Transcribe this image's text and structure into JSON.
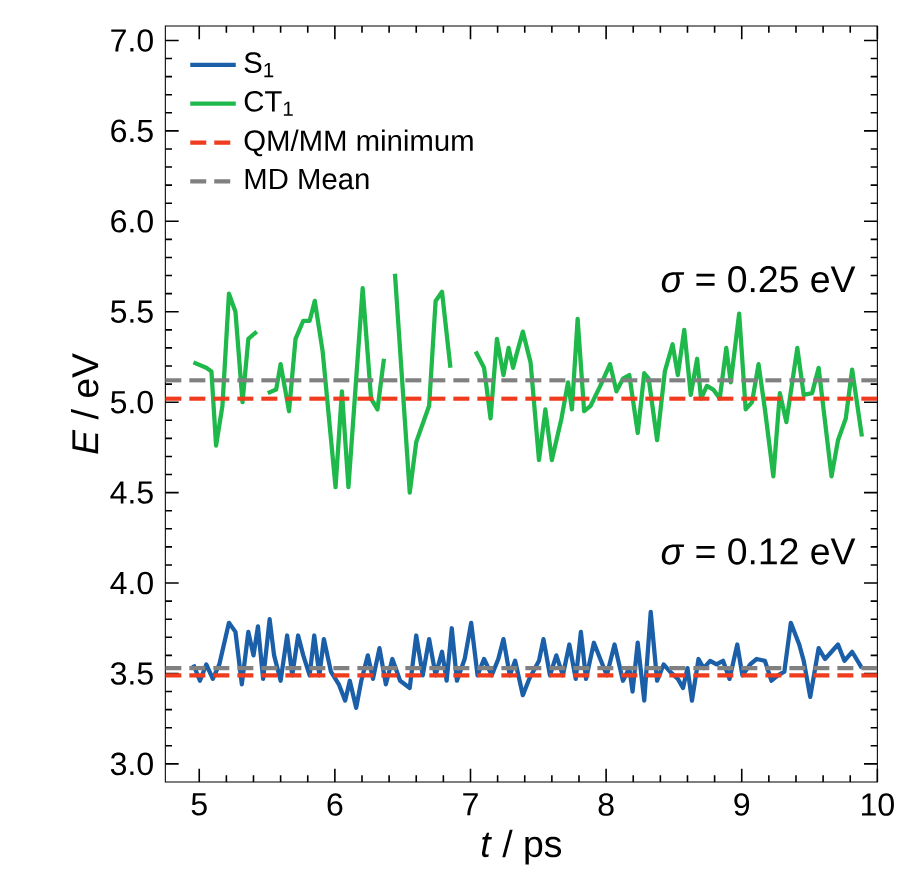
{
  "chart_data": {
    "type": "line",
    "xlabel": "*t* / ps",
    "ylabel": "*E* / eV",
    "xlim": [
      4.75,
      10
    ],
    "ylim": [
      2.9,
      7.08
    ],
    "xticks": [
      5,
      6,
      7,
      8,
      9,
      10
    ],
    "yticks": [
      {
        "value": 3,
        "label": "3.0"
      },
      {
        "value": 3.5,
        "label": "3.5"
      },
      {
        "value": 4,
        "label": "4.0"
      },
      {
        "value": 4.5,
        "label": "4.5"
      },
      {
        "value": 5,
        "label": "5.0"
      },
      {
        "value": 5.5,
        "label": "5.5"
      },
      {
        "value": 6,
        "label": "6.0"
      },
      {
        "value": 6.5,
        "label": "6.5"
      },
      {
        "value": 7,
        "label": "7.0"
      }
    ],
    "legend": "top left",
    "grid": false,
    "marker": "none",
    "line_style": "solid",
    "series": [
      {
        "name": "S$_{1}$",
        "color": "#1a5fa8",
        "x": [
          4.957,
          5.005,
          5.052,
          5.1,
          5.148,
          5.219,
          5.267,
          5.314,
          5.362,
          5.4,
          5.433,
          5.471,
          5.519,
          5.552,
          5.6,
          5.648,
          5.686,
          5.729,
          5.767,
          5.814,
          5.848,
          5.886,
          5.919,
          5.971,
          6.029,
          6.076,
          6.11,
          6.157,
          6.195,
          6.243,
          6.281,
          6.329,
          6.376,
          6.424,
          6.481,
          6.552,
          6.6,
          6.648,
          6.695,
          6.743,
          6.79,
          6.824,
          6.862,
          6.9,
          6.957,
          7.005,
          7.052,
          7.1,
          7.157,
          7.205,
          7.243,
          7.29,
          7.329,
          7.386,
          7.433,
          7.505,
          7.538,
          7.586,
          7.633,
          7.681,
          7.729,
          7.776,
          7.814,
          7.852,
          7.91,
          7.957,
          8.005,
          8.062,
          8.124,
          8.171,
          8.195,
          8.233,
          8.281,
          8.329,
          8.376,
          8.424,
          8.471,
          8.529,
          8.567,
          8.6,
          8.633,
          8.681,
          8.719,
          8.767,
          8.814,
          8.862,
          8.91,
          8.967,
          9.005,
          9.062,
          9.11,
          9.171,
          9.219,
          9.267,
          9.314,
          9.362,
          9.424,
          9.457,
          9.505,
          9.567,
          9.614,
          9.662,
          9.71,
          9.757,
          9.814,
          9.886
        ],
        "values": [
          3.55,
          3.46,
          3.55,
          3.47,
          3.55,
          3.78,
          3.73,
          3.44,
          3.73,
          3.6,
          3.76,
          3.47,
          3.8,
          3.6,
          3.46,
          3.71,
          3.49,
          3.71,
          3.6,
          3.49,
          3.71,
          3.49,
          3.69,
          3.51,
          3.44,
          3.35,
          3.46,
          3.31,
          3.46,
          3.6,
          3.47,
          3.64,
          3.44,
          3.58,
          3.46,
          3.42,
          3.71,
          3.49,
          3.69,
          3.49,
          3.62,
          3.46,
          3.75,
          3.46,
          3.58,
          3.78,
          3.49,
          3.58,
          3.49,
          3.58,
          3.69,
          3.49,
          3.57,
          3.38,
          3.47,
          3.57,
          3.69,
          3.49,
          3.6,
          3.49,
          3.66,
          3.47,
          3.73,
          3.47,
          3.67,
          3.58,
          3.49,
          3.66,
          3.46,
          3.53,
          3.4,
          3.67,
          3.35,
          3.84,
          3.46,
          3.55,
          3.51,
          3.47,
          3.42,
          3.53,
          3.35,
          3.58,
          3.53,
          3.57,
          3.55,
          3.57,
          3.47,
          3.66,
          3.49,
          3.55,
          3.58,
          3.57,
          3.46,
          3.49,
          3.51,
          3.78,
          3.66,
          3.57,
          3.37,
          3.64,
          3.58,
          3.62,
          3.66,
          3.57,
          3.62,
          3.53
        ]
      },
      {
        "name": "CT$_{1}$",
        "color": "#1fb84a",
        "x": [
          4.957,
          5.052,
          5.09,
          5.124,
          5.171,
          5.219,
          5.267,
          5.319,
          5.362,
          5.424,
          5.45,
          5.505,
          5.567,
          5.6,
          5.662,
          5.71,
          5.767,
          5.814,
          5.852,
          5.91,
          6.005,
          6.052,
          6.1,
          6.205,
          6.267,
          6.314,
          6.362,
          6.39,
          6.443,
          6.552,
          6.6,
          6.695,
          6.743,
          6.79,
          6.852,
          6.9,
          7.038,
          7.1,
          7.148,
          7.195,
          7.243,
          7.281,
          7.314,
          7.338,
          7.386,
          7.443,
          7.505,
          7.552,
          7.6,
          7.671,
          7.719,
          7.748,
          7.79,
          7.838,
          7.886,
          7.957,
          8.029,
          8.076,
          8.124,
          8.171,
          8.233,
          8.281,
          8.314,
          8.376,
          8.433,
          8.49,
          8.529,
          8.576,
          8.624,
          8.671,
          8.7,
          8.743,
          8.79,
          8.838,
          8.886,
          8.919,
          8.981,
          9.029,
          9.076,
          9.124,
          9.171,
          9.233,
          9.281,
          9.329,
          9.41,
          9.457,
          9.519,
          9.567,
          9.662,
          9.71,
          9.767,
          9.814,
          9.886
        ],
        "values": [
          5.22,
          5.19,
          5.17,
          4.76,
          4.98,
          5.6,
          5.5,
          5.0,
          5.35,
          5.39,
          null,
          5.05,
          5.07,
          5.21,
          4.95,
          5.35,
          5.45,
          5.45,
          5.56,
          5.28,
          4.53,
          5.06,
          4.53,
          5.63,
          5.02,
          4.96,
          5.24,
          null,
          5.71,
          4.5,
          4.78,
          4.98,
          5.56,
          5.61,
          5.19,
          null,
          5.28,
          5.19,
          4.91,
          5.35,
          5.15,
          5.3,
          5.19,
          5.26,
          5.39,
          5.22,
          4.68,
          4.96,
          4.68,
          4.91,
          5.11,
          4.96,
          5.46,
          4.95,
          4.98,
          5.09,
          5.21,
          5.06,
          5.13,
          5.15,
          4.83,
          5.16,
          5.13,
          4.79,
          5.17,
          5.32,
          5.15,
          5.4,
          5.04,
          5.24,
          5.02,
          5.09,
          5.07,
          5.02,
          5.3,
          5.11,
          5.49,
          4.96,
          5.0,
          5.21,
          4.96,
          4.59,
          5.05,
          4.89,
          5.3,
          5.04,
          5.05,
          5.19,
          4.59,
          4.79,
          4.91,
          5.18,
          4.81
        ]
      }
    ],
    "ref_lines": [
      {
        "axis": "y",
        "value": 3.49,
        "label": "QM/MM minimum",
        "color": "#f03c1e",
        "line_style": "dashed"
      },
      {
        "axis": "y",
        "value": 3.53,
        "label": "MD Mean",
        "color": "#808080",
        "line_style": "dashed"
      },
      {
        "axis": "y",
        "value": 5.02,
        "color": "#f03c1e",
        "line_style": "dashed"
      },
      {
        "axis": "y",
        "value": 5.12,
        "color": "#808080",
        "line_style": "dashed"
      }
    ],
    "annotations": [
      "*σ* = 0.25 eV",
      "*σ* = 0.12 eV"
    ]
  }
}
